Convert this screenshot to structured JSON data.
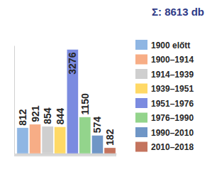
{
  "chart_data": {
    "type": "bar",
    "title": "Σ: 8613 db",
    "categories": [
      "1900 előtt",
      "1900–1914",
      "1914–1939",
      "1939–1951",
      "1951–1976",
      "1976–1990",
      "1990–2010",
      "2010–2018"
    ],
    "values": [
      812,
      921,
      854,
      844,
      3276,
      1150,
      574,
      182
    ],
    "colors": [
      "#8fb6e3",
      "#f7ad86",
      "#cfcfcf",
      "#ffd966",
      "#7b8be0",
      "#93d48c",
      "#6f96c6",
      "#c4745e"
    ],
    "ylim": [
      0,
      3400
    ],
    "yticks": [],
    "grid": false,
    "data_labels": true,
    "tick_labels": false,
    "legend": "right"
  }
}
